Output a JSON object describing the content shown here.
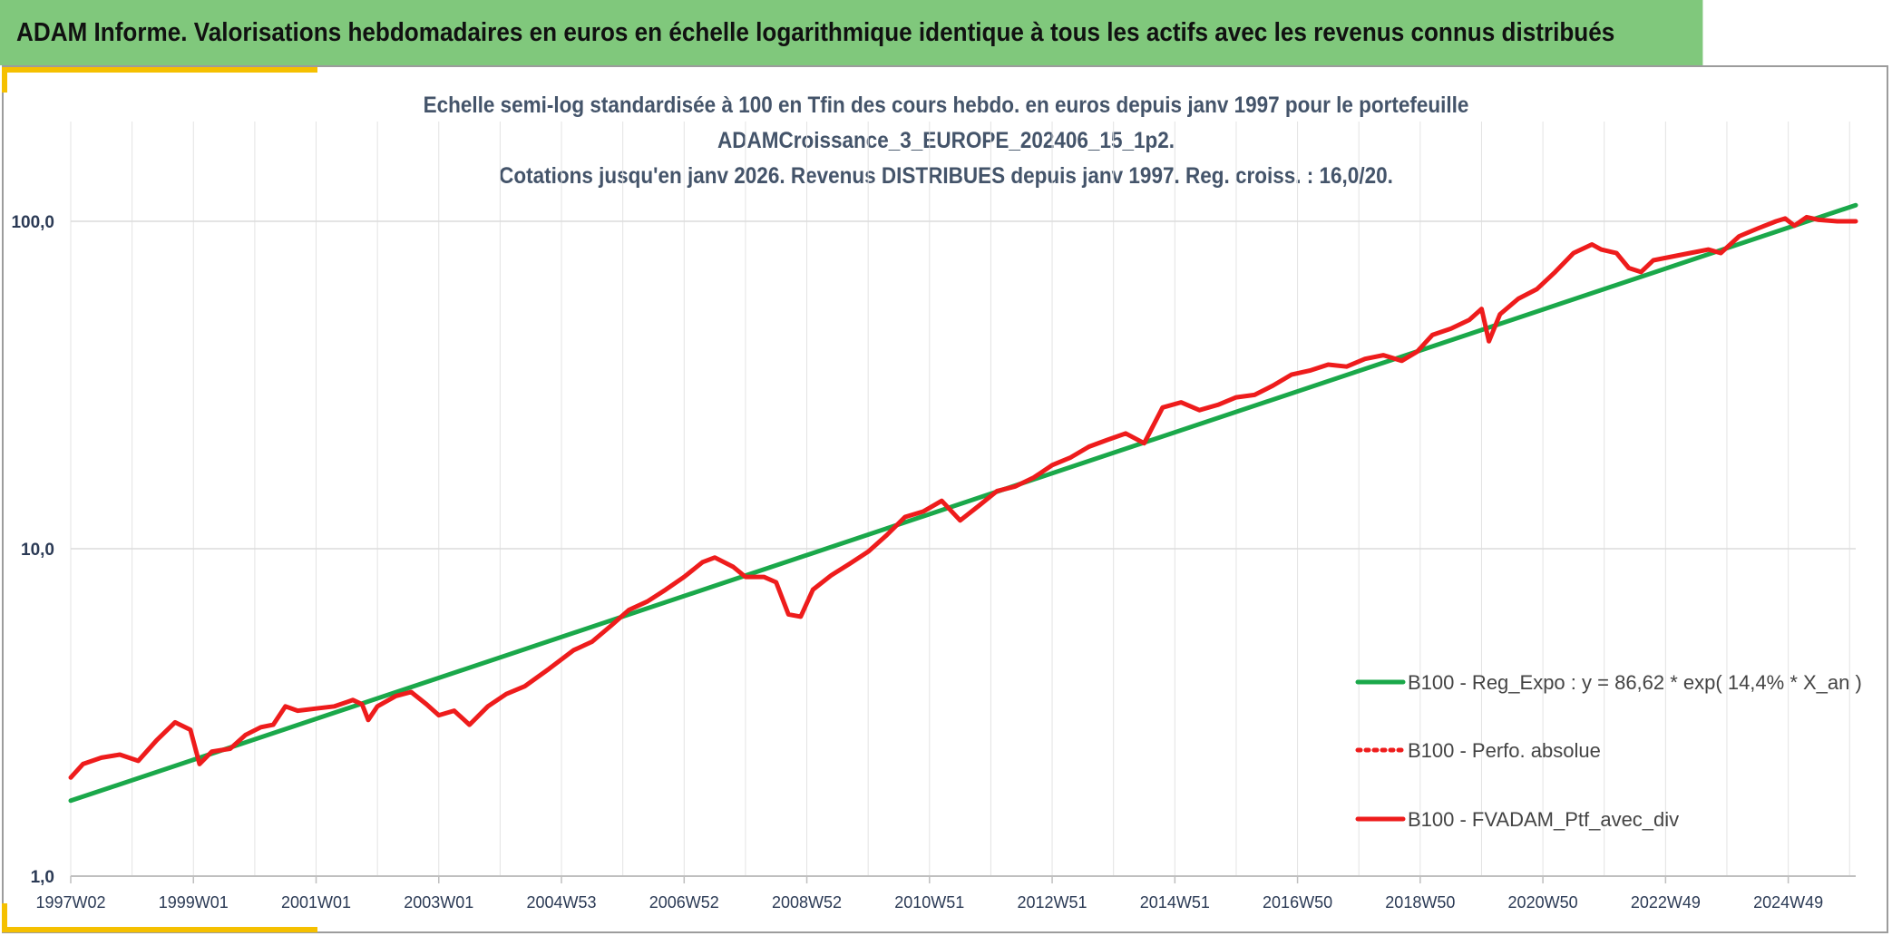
{
  "header": {
    "banner": "ADAM Informe. Valorisations hebdomadaires en euros en échelle logarithmique identique à tous les actifs avec les revenus connus distribués"
  },
  "colors": {
    "banner": "#80c87c",
    "accent": "#f5c000",
    "regression": "#1aa84a",
    "portfolio": "#ee1c1c",
    "title": "#44546a"
  },
  "chart_data": {
    "type": "line",
    "title_lines": [
      "Echelle semi-log standardisée à 100 en Tfin des cours hebdo. en euros depuis janv 1997 pour le portefeuille",
      "ADAMCroissance_3_EUROPE_202406_15_1p2.",
      "Cotations jusqu'en janv 2026. Revenus DISTRIBUES depuis janv 1997. Reg. croiss. : 16,0/20."
    ],
    "y_scale": "log",
    "ylim": [
      1,
      100
    ],
    "yticks": [
      1,
      10,
      100
    ],
    "ytick_labels": [
      "1,0",
      "10,0",
      "100,0"
    ],
    "xlim": [
      1997.0,
      2026.1
    ],
    "xtick_labels": [
      "1997W02",
      "1999W01",
      "2001W01",
      "2003W01",
      "2004W53",
      "2006W52",
      "2008W52",
      "2010W51",
      "2012W51",
      "2014W51",
      "2016W50",
      "2018W50",
      "2020W50",
      "2022W49",
      "2024W49"
    ],
    "xtick_years": [
      1997.0,
      1999.0,
      2001.0,
      2003.0,
      2005.0,
      2007.0,
      2009.0,
      2011.0,
      2013.0,
      2015.0,
      2017.0,
      2019.0,
      2021.0,
      2023.0,
      2025.0
    ],
    "grid": true,
    "legend_position": "bottom-right",
    "series": [
      {
        "name": "B100 - Reg_Expo : y = 86,62 * exp( 14,4% *  X_an )",
        "style": "solid-green",
        "color": "#1aa84a",
        "x": [
          1997.0,
          2026.1
        ],
        "y": [
          1.7,
          112
        ]
      },
      {
        "name": "B100 - Perfo. absolue",
        "style": "dotted-red",
        "color": "#ee1c1c",
        "x": [],
        "y": []
      },
      {
        "name": "B100 - FVADAM_Ptf_avec_div",
        "style": "solid-red",
        "color": "#ee1c1c",
        "x": [
          1997.0,
          1997.2,
          1997.5,
          1997.8,
          1998.1,
          1998.4,
          1998.7,
          1998.95,
          1999.1,
          1999.3,
          1999.6,
          1999.85,
          2000.1,
          2000.3,
          2000.5,
          2000.7,
          2001.0,
          2001.3,
          2001.6,
          2001.75,
          2001.85,
          2002.0,
          2002.3,
          2002.55,
          2002.8,
          2003.0,
          2003.25,
          2003.5,
          2003.8,
          2004.1,
          2004.4,
          2004.8,
          2005.2,
          2005.5,
          2005.8,
          2006.1,
          2006.4,
          2006.7,
          2007.0,
          2007.3,
          2007.5,
          2007.8,
          2008.0,
          2008.3,
          2008.5,
          2008.7,
          2008.9,
          2009.1,
          2009.4,
          2009.7,
          2010.0,
          2010.3,
          2010.6,
          2010.9,
          2011.2,
          2011.5,
          2011.8,
          2012.1,
          2012.4,
          2012.7,
          2013.0,
          2013.3,
          2013.6,
          2013.9,
          2014.2,
          2014.5,
          2014.8,
          2015.1,
          2015.4,
          2015.7,
          2016.0,
          2016.3,
          2016.6,
          2016.9,
          2017.2,
          2017.5,
          2017.8,
          2018.1,
          2018.4,
          2018.7,
          2018.95,
          2019.2,
          2019.5,
          2019.8,
          2020.0,
          2020.12,
          2020.3,
          2020.6,
          2020.9,
          2021.2,
          2021.5,
          2021.8,
          2021.95,
          2022.2,
          2022.4,
          2022.6,
          2022.8,
          2023.1,
          2023.4,
          2023.7,
          2023.9,
          2024.2,
          2024.5,
          2024.8,
          2024.95,
          2025.1,
          2025.3,
          2025.5,
          2025.8,
          2026.1
        ],
        "y": [
          2.0,
          2.2,
          2.3,
          2.35,
          2.25,
          2.6,
          2.95,
          2.8,
          2.2,
          2.4,
          2.45,
          2.7,
          2.85,
          2.9,
          3.3,
          3.2,
          3.25,
          3.3,
          3.45,
          3.35,
          3.0,
          3.3,
          3.55,
          3.65,
          3.35,
          3.1,
          3.2,
          2.9,
          3.3,
          3.6,
          3.8,
          4.3,
          4.9,
          5.2,
          5.8,
          6.5,
          6.9,
          7.5,
          8.2,
          9.1,
          9.4,
          8.8,
          8.2,
          8.2,
          7.9,
          6.3,
          6.2,
          7.5,
          8.3,
          9.0,
          9.8,
          11.0,
          12.5,
          13.0,
          14.0,
          12.2,
          13.5,
          15.0,
          15.5,
          16.5,
          18.0,
          19.0,
          20.5,
          21.5,
          22.5,
          21.0,
          27.0,
          28.0,
          26.5,
          27.5,
          29.0,
          29.5,
          31.5,
          34.0,
          35.0,
          36.5,
          36.0,
          38.0,
          39.0,
          37.5,
          40.0,
          45.0,
          47.0,
          50.0,
          54.0,
          43.0,
          52.0,
          58.0,
          62.0,
          70.0,
          80.0,
          85.0,
          82.0,
          80.0,
          72.0,
          70.0,
          76.0,
          78.0,
          80.0,
          82.0,
          80.0,
          90.0,
          95.0,
          100.0,
          102.0,
          97.0,
          103.0,
          101.0,
          100.0,
          100.0
        ]
      }
    ]
  }
}
